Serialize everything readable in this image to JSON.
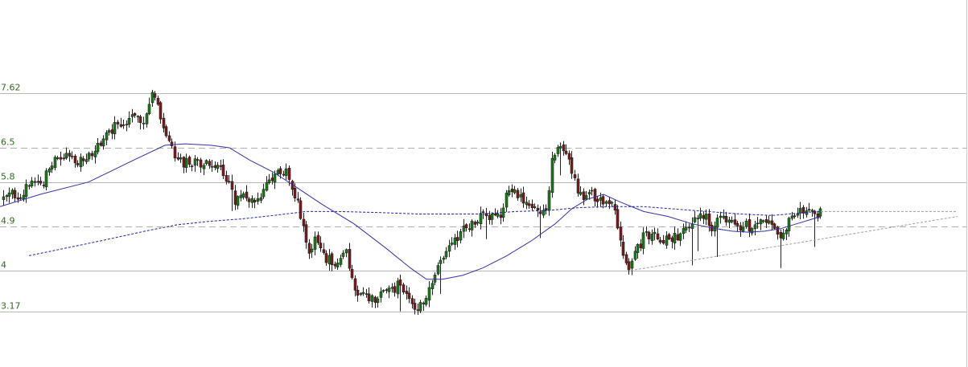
{
  "chart_data": {
    "type": "candlestick",
    "title": "",
    "xlabel": "",
    "ylabel": "",
    "ylim": [
      2.5,
      9.0
    ],
    "grid": false,
    "colors": {
      "up": "#1a7a1a",
      "down": "#7a1a1a",
      "wick": "#222222",
      "ma_short": "#3333aa",
      "ma_long": "#2222aa",
      "trendline": "#a0a0a0",
      "hline_solid": "#b8b8b8",
      "hline_dashed": "#b0b0b0",
      "label_text": "#2e6b1f"
    },
    "y_levels": [
      {
        "value": 7.62,
        "label": "7.62",
        "style": "solid"
      },
      {
        "value": 6.5,
        "label": "6.5",
        "style": "dashed"
      },
      {
        "value": 5.8,
        "label": "5.8",
        "style": "solid"
      },
      {
        "value": 4.9,
        "label": "4.9",
        "style": "dashed"
      },
      {
        "value": 4.0,
        "label": "4",
        "style": "solid"
      },
      {
        "value": 3.17,
        "label": "3.17",
        "style": "solid"
      }
    ],
    "close_path": [
      [
        0,
        5.35
      ],
      [
        12,
        5.55
      ],
      [
        25,
        5.55
      ],
      [
        40,
        5.75
      ],
      [
        55,
        5.85
      ],
      [
        65,
        6.2
      ],
      [
        80,
        6.3
      ],
      [
        95,
        6.25
      ],
      [
        105,
        6.2
      ],
      [
        115,
        6.4
      ],
      [
        125,
        6.6
      ],
      [
        135,
        6.8
      ],
      [
        145,
        6.95
      ],
      [
        155,
        7.0
      ],
      [
        163,
        7.3
      ],
      [
        170,
        7.15
      ],
      [
        180,
        7.05
      ],
      [
        188,
        7.55
      ],
      [
        195,
        7.4
      ],
      [
        202,
        6.85
      ],
      [
        210,
        6.7
      ],
      [
        218,
        6.15
      ],
      [
        226,
        6.2
      ],
      [
        235,
        6.2
      ],
      [
        245,
        6.15
      ],
      [
        255,
        6.15
      ],
      [
        265,
        6.15
      ],
      [
        275,
        6.05
      ],
      [
        285,
        5.75
      ],
      [
        292,
        5.35
      ],
      [
        300,
        5.55
      ],
      [
        310,
        5.45
      ],
      [
        320,
        5.45
      ],
      [
        330,
        5.75
      ],
      [
        340,
        5.95
      ],
      [
        350,
        6.0
      ],
      [
        358,
        5.95
      ],
      [
        366,
        5.55
      ],
      [
        375,
        5.05
      ],
      [
        383,
        4.4
      ],
      [
        392,
        4.7
      ],
      [
        400,
        4.3
      ],
      [
        410,
        4.2
      ],
      [
        420,
        4.15
      ],
      [
        430,
        4.4
      ],
      [
        438,
        3.7
      ],
      [
        446,
        3.5
      ],
      [
        455,
        3.5
      ],
      [
        465,
        3.35
      ],
      [
        475,
        3.5
      ],
      [
        485,
        3.55
      ],
      [
        495,
        3.7
      ],
      [
        505,
        3.6
      ],
      [
        513,
        3.35
      ],
      [
        520,
        3.15
      ],
      [
        528,
        3.5
      ],
      [
        538,
        3.8
      ],
      [
        548,
        4.15
      ],
      [
        558,
        4.5
      ],
      [
        568,
        4.7
      ],
      [
        578,
        4.85
      ],
      [
        590,
        5.05
      ],
      [
        600,
        5.15
      ],
      [
        612,
        5.05
      ],
      [
        622,
        5.1
      ],
      [
        632,
        5.65
      ],
      [
        642,
        5.6
      ],
      [
        652,
        5.45
      ],
      [
        662,
        5.35
      ],
      [
        672,
        5.25
      ],
      [
        680,
        5.15
      ],
      [
        686,
        6.4
      ],
      [
        694,
        6.45
      ],
      [
        702,
        6.35
      ],
      [
        710,
        6.05
      ],
      [
        718,
        5.65
      ],
      [
        726,
        5.45
      ],
      [
        734,
        5.55
      ],
      [
        742,
        5.5
      ],
      [
        750,
        5.45
      ],
      [
        758,
        5.4
      ],
      [
        766,
        5.05
      ],
      [
        774,
        4.3
      ],
      [
        782,
        4.05
      ],
      [
        790,
        4.35
      ],
      [
        800,
        4.7
      ],
      [
        810,
        4.75
      ],
      [
        820,
        4.55
      ],
      [
        830,
        4.65
      ],
      [
        840,
        4.7
      ],
      [
        850,
        4.85
      ],
      [
        860,
        5.0
      ],
      [
        870,
        5.1
      ],
      [
        878,
        5.05
      ],
      [
        884,
        4.85
      ],
      [
        892,
        5.05
      ],
      [
        900,
        5.0
      ],
      [
        910,
        4.95
      ],
      [
        920,
        4.9
      ],
      [
        930,
        4.9
      ],
      [
        940,
        4.95
      ],
      [
        950,
        4.9
      ],
      [
        958,
        4.95
      ],
      [
        966,
        4.65
      ],
      [
        972,
        4.7
      ],
      [
        980,
        5.05
      ],
      [
        990,
        5.2
      ],
      [
        1000,
        5.25
      ],
      [
        1008,
        5.35
      ],
      [
        1014,
        5.05
      ],
      [
        1020,
        5.25
      ]
    ],
    "ma_short": [
      [
        0,
        5.3
      ],
      [
        50,
        5.55
      ],
      [
        110,
        5.8
      ],
      [
        160,
        6.2
      ],
      [
        205,
        6.55
      ],
      [
        230,
        6.58
      ],
      [
        262,
        6.55
      ],
      [
        285,
        6.5
      ],
      [
        310,
        6.25
      ],
      [
        340,
        6.0
      ],
      [
        368,
        5.7
      ],
      [
        400,
        5.35
      ],
      [
        440,
        4.95
      ],
      [
        480,
        4.45
      ],
      [
        510,
        4.05
      ],
      [
        530,
        3.82
      ],
      [
        550,
        3.82
      ],
      [
        575,
        3.9
      ],
      [
        600,
        4.05
      ],
      [
        630,
        4.3
      ],
      [
        660,
        4.6
      ],
      [
        690,
        4.95
      ],
      [
        710,
        5.25
      ],
      [
        730,
        5.45
      ],
      [
        750,
        5.55
      ],
      [
        770,
        5.4
      ],
      [
        800,
        5.2
      ],
      [
        830,
        5.1
      ],
      [
        860,
        4.95
      ],
      [
        890,
        4.85
      ],
      [
        910,
        4.8
      ],
      [
        930,
        4.78
      ],
      [
        950,
        4.8
      ],
      [
        970,
        4.85
      ],
      [
        990,
        4.95
      ],
      [
        1010,
        5.05
      ],
      [
        1020,
        5.1
      ]
    ],
    "ma_long": [
      [
        36,
        4.3
      ],
      [
        80,
        4.45
      ],
      [
        130,
        4.62
      ],
      [
        180,
        4.8
      ],
      [
        220,
        4.93
      ],
      [
        260,
        5.0
      ],
      [
        300,
        5.05
      ],
      [
        340,
        5.12
      ],
      [
        380,
        5.2
      ],
      [
        420,
        5.2
      ],
      [
        470,
        5.18
      ],
      [
        520,
        5.15
      ],
      [
        560,
        5.15
      ],
      [
        600,
        5.15
      ],
      [
        640,
        5.2
      ],
      [
        680,
        5.22
      ],
      [
        720,
        5.28
      ],
      [
        760,
        5.3
      ],
      [
        800,
        5.3
      ],
      [
        840,
        5.25
      ],
      [
        880,
        5.2
      ],
      [
        920,
        5.15
      ],
      [
        960,
        5.12
      ],
      [
        1000,
        5.18
      ],
      [
        1020,
        5.2
      ]
    ],
    "ma_long_ext": [
      [
        1020,
        5.2
      ],
      [
        1190,
        5.2
      ]
    ],
    "trendline": [
      [
        784,
        4.0
      ],
      [
        1190,
        5.1
      ]
    ]
  }
}
